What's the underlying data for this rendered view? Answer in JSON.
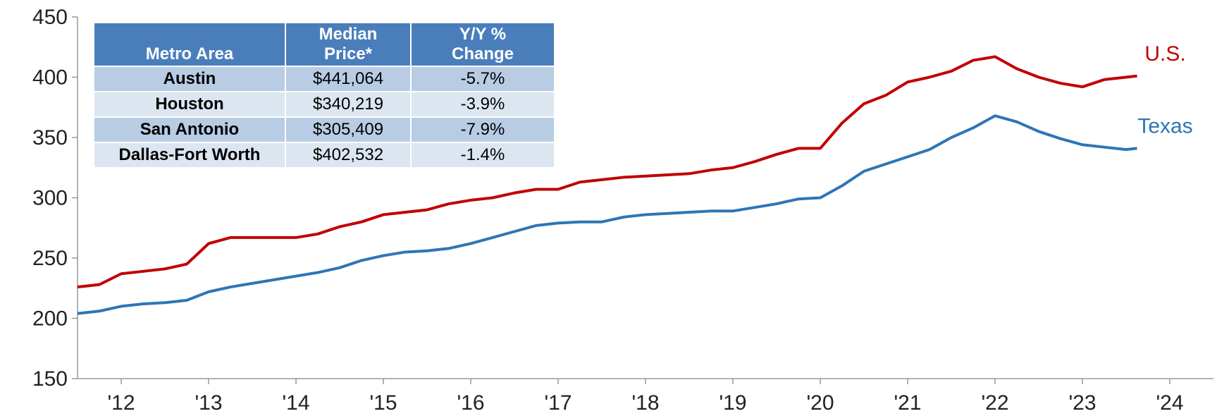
{
  "chart_data": {
    "type": "line",
    "xlim": [
      2012,
      2025
    ],
    "xticks": [
      {
        "value": 2012.5,
        "label": "'12"
      },
      {
        "value": 2013.5,
        "label": "'13"
      },
      {
        "value": 2014.5,
        "label": "'14"
      },
      {
        "value": 2015.5,
        "label": "'15"
      },
      {
        "value": 2016.5,
        "label": "'16"
      },
      {
        "value": 2017.5,
        "label": "'17"
      },
      {
        "value": 2018.5,
        "label": "'18"
      },
      {
        "value": 2019.5,
        "label": "'19"
      },
      {
        "value": 2020.5,
        "label": "'20"
      },
      {
        "value": 2021.5,
        "label": "'21"
      },
      {
        "value": 2022.5,
        "label": "'22"
      },
      {
        "value": 2023.5,
        "label": "'23"
      },
      {
        "value": 2024.5,
        "label": "'24"
      }
    ],
    "ylim": [
      150,
      450
    ],
    "yticks": [
      150,
      200,
      250,
      300,
      350,
      400,
      450
    ],
    "grid": false,
    "x": [
      2012,
      2012.25,
      2012.5,
      2012.75,
      2013,
      2013.25,
      2013.5,
      2013.75,
      2014,
      2014.25,
      2014.5,
      2014.75,
      2015,
      2015.25,
      2015.5,
      2015.75,
      2016,
      2016.25,
      2016.5,
      2016.75,
      2017,
      2017.25,
      2017.5,
      2017.75,
      2018,
      2018.25,
      2018.5,
      2018.75,
      2019,
      2019.25,
      2019.5,
      2019.75,
      2020,
      2020.25,
      2020.5,
      2020.75,
      2021,
      2021.25,
      2021.5,
      2021.75,
      2022,
      2022.25,
      2022.5,
      2022.75,
      2023,
      2023.25,
      2023.5,
      2023.75,
      2024,
      2024.125
    ],
    "series": [
      {
        "name": "U.S.",
        "color": "#c00000",
        "values": [
          226,
          228,
          237,
          239,
          241,
          245,
          262,
          267,
          267,
          267,
          267,
          270,
          276,
          280,
          286,
          288,
          290,
          295,
          298,
          300,
          304,
          307,
          307,
          313,
          315,
          317,
          318,
          319,
          320,
          323,
          325,
          330,
          336,
          341,
          341,
          362,
          378,
          385,
          396,
          400,
          405,
          414,
          417,
          407,
          400,
          395,
          392,
          398,
          400,
          401
        ]
      },
      {
        "name": "Texas",
        "color": "#2e75b6",
        "values": [
          204,
          206,
          210,
          212,
          213,
          215,
          222,
          226,
          229,
          232,
          235,
          238,
          242,
          248,
          252,
          255,
          256,
          258,
          262,
          267,
          272,
          277,
          279,
          280,
          280,
          284,
          286,
          287,
          288,
          289,
          289,
          292,
          295,
          299,
          300,
          310,
          322,
          328,
          334,
          340,
          350,
          358,
          368,
          363,
          355,
          349,
          344,
          342,
          340,
          341
        ]
      }
    ]
  },
  "table": {
    "header": [
      [
        "Metro Area"
      ],
      [
        "Median",
        "Price*"
      ],
      [
        "Y/Y %",
        "Change"
      ]
    ],
    "rows": [
      [
        "Austin",
        "$441,064",
        "-5.7%"
      ],
      [
        "Houston",
        "$340,219",
        "-3.9%"
      ],
      [
        "San Antonio",
        "$305,409",
        "-7.9%"
      ],
      [
        "Dallas-Fort Worth",
        "$402,532",
        "-1.4%"
      ]
    ]
  }
}
